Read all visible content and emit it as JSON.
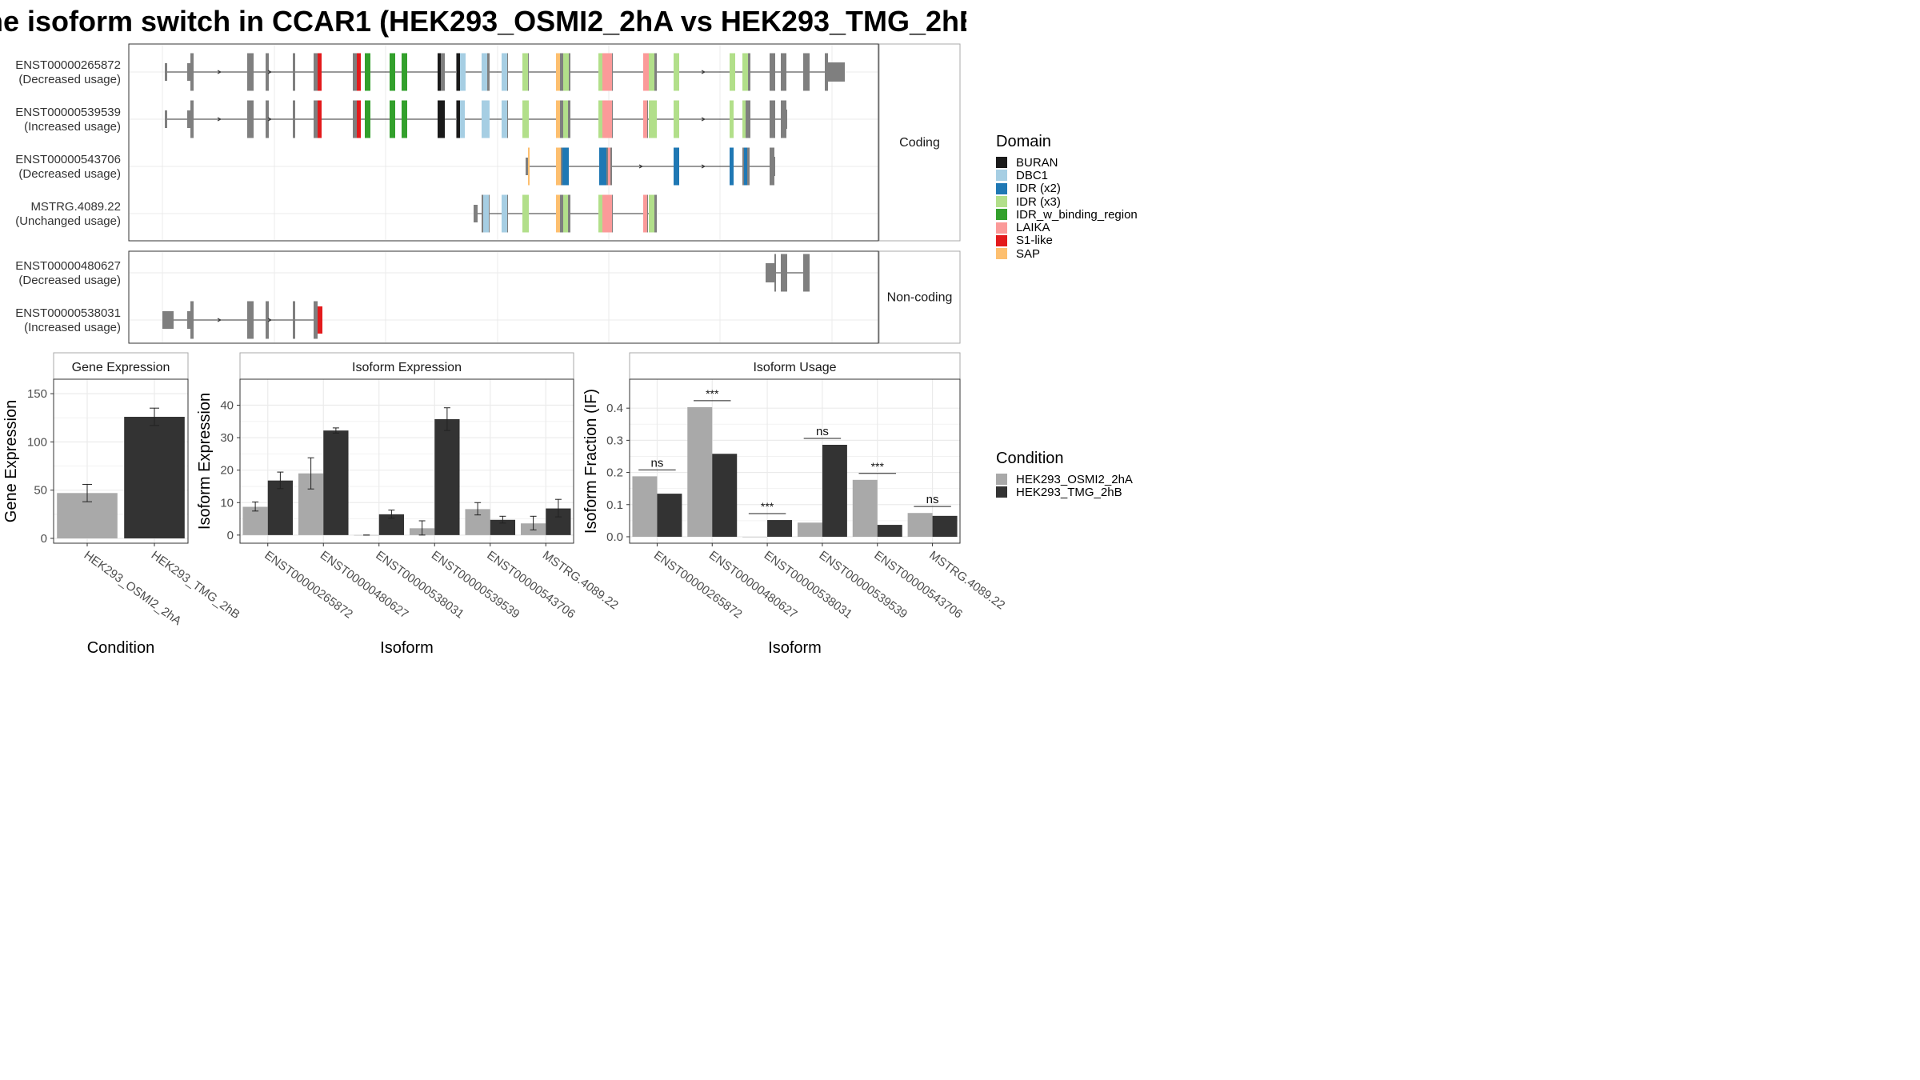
{
  "title": "he isoform switch in CCAR1 (HEK293_OSMI2_2hA vs HEK293_TMG_2hB",
  "transcripts": {
    "coding_strip": "Coding",
    "noncoding_strip": "Non-coding",
    "coding": [
      {
        "id": "ENST00000265872",
        "usage": "(Decreased usage)"
      },
      {
        "id": "ENST00000539539",
        "usage": "(Increased usage)"
      },
      {
        "id": "ENST00000543706",
        "usage": "(Decreased usage)"
      },
      {
        "id": "MSTRG.4089.22",
        "usage": "(Unchanged usage)"
      }
    ],
    "noncoding": [
      {
        "id": "ENST00000480627",
        "usage": "(Decreased usage)"
      },
      {
        "id": "ENST00000538031",
        "usage": "(Increased usage)"
      }
    ]
  },
  "domain_legend": {
    "title": "Domain",
    "items": [
      {
        "name": "BURAN",
        "color": "#1a1a1a"
      },
      {
        "name": "DBC1",
        "color": "#a6cee3"
      },
      {
        "name": "IDR (x2)",
        "color": "#1f78b4"
      },
      {
        "name": "IDR (x3)",
        "color": "#b2df8a"
      },
      {
        "name": "IDR_w_binding_region",
        "color": "#33a02c"
      },
      {
        "name": "LAIKA",
        "color": "#fb9a99"
      },
      {
        "name": "S1-like",
        "color": "#e31a1c"
      },
      {
        "name": "SAP",
        "color": "#fdbf6f"
      }
    ]
  },
  "condition_legend": {
    "title": "Condition",
    "items": [
      {
        "name": "HEK293_OSMI2_2hA",
        "color": "#a9a9a9"
      },
      {
        "name": "HEK293_TMG_2hB",
        "color": "#333333"
      }
    ]
  },
  "chart_data": [
    {
      "type": "bar",
      "title": "Gene Expression",
      "xlabel": "Condition",
      "ylabel": "Gene Expression",
      "categories": [
        "HEK293_OSMI2_2hA",
        "HEK293_TMG_2hB"
      ],
      "values": [
        47,
        126
      ],
      "errors": [
        [
          38,
          56
        ],
        [
          117,
          135
        ]
      ],
      "ylim": [
        -5,
        165
      ],
      "yticks": [
        0,
        50,
        100,
        150
      ],
      "grid": true
    },
    {
      "type": "bar",
      "title": "Isoform Expression",
      "xlabel": "Isoform",
      "ylabel": "Isoform Expression",
      "categories": [
        "ENST00000265872",
        "ENST00000480627",
        "ENST00000538031",
        "ENST00000539539",
        "ENST00000543706",
        "MSTRG.4089.22"
      ],
      "series": [
        {
          "name": "HEK293_OSMI2_2hA",
          "values": [
            8.7,
            19.0,
            0.0,
            2.1,
            8.0,
            3.6
          ],
          "errors": [
            [
              7.4,
              10.2
            ],
            [
              14.2,
              23.8
            ],
            [
              0,
              0
            ],
            [
              0,
              4.4
            ],
            [
              6.2,
              10.0
            ],
            [
              1.6,
              5.8
            ]
          ]
        },
        {
          "name": "HEK293_TMG_2hB",
          "values": [
            16.8,
            32.2,
            6.4,
            35.7,
            4.7,
            8.2
          ],
          "errors": [
            [
              14.3,
              19.4
            ],
            [
              31.4,
              33.0
            ],
            [
              5.2,
              7.7
            ],
            [
              32.2,
              39.2
            ],
            [
              3.7,
              5.8
            ],
            [
              5.6,
              11.0
            ]
          ]
        }
      ],
      "ylim": [
        -2.5,
        48
      ],
      "yticks": [
        0,
        10,
        20,
        30,
        40
      ],
      "grid": true
    },
    {
      "type": "bar",
      "title": "Isoform Usage",
      "xlabel": "Isoform",
      "ylabel": "Isoform Fraction (IF)",
      "categories": [
        "ENST00000265872",
        "ENST00000480627",
        "ENST00000538031",
        "ENST00000539539",
        "ENST00000543706",
        "MSTRG.4089.22"
      ],
      "series": [
        {
          "name": "HEK293_OSMI2_2hA",
          "values": [
            0.188,
            0.403,
            0.0,
            0.044,
            0.177,
            0.074
          ]
        },
        {
          "name": "HEK293_TMG_2hB",
          "values": [
            0.134,
            0.258,
            0.052,
            0.286,
            0.037,
            0.065
          ]
        }
      ],
      "significance": [
        {
          "label": "ns",
          "y": 0.208
        },
        {
          "label": "***",
          "y": 0.423
        },
        {
          "label": "***",
          "y": 0.072
        },
        {
          "label": "ns",
          "y": 0.306
        },
        {
          "label": "***",
          "y": 0.197
        },
        {
          "label": "ns",
          "y": 0.094
        }
      ],
      "ylim": [
        -0.02,
        0.49
      ],
      "yticks": [
        "0.0",
        "0.1",
        "0.2",
        "0.3",
        "0.4"
      ],
      "grid": true
    }
  ]
}
